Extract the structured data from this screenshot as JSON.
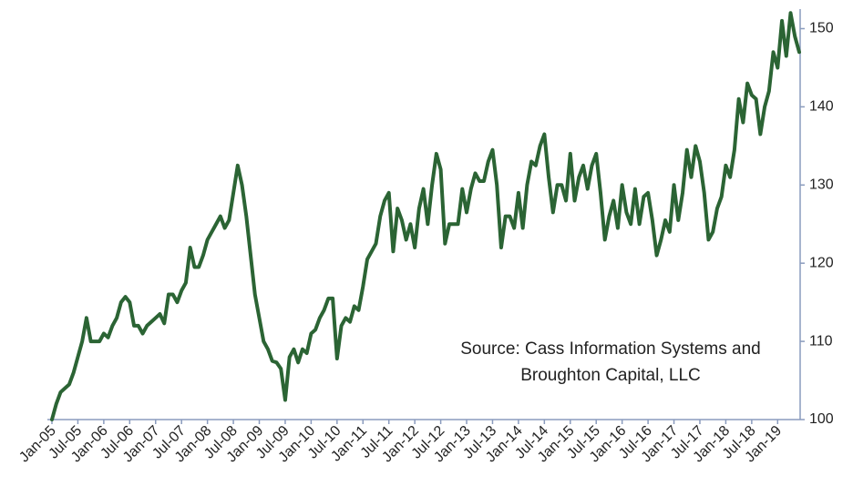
{
  "chart_data": {
    "type": "line",
    "annotation": [
      "Source: Cass Information Systems and",
      "Broughton Capital, LLC"
    ],
    "categories": [
      "Jan-05",
      null,
      null,
      null,
      null,
      null,
      "Jul-05",
      null,
      null,
      null,
      null,
      null,
      "Jan-06",
      null,
      null,
      null,
      null,
      null,
      "Jul-06",
      null,
      null,
      null,
      null,
      null,
      "Jan-07",
      null,
      null,
      null,
      null,
      null,
      "Jul-07",
      null,
      null,
      null,
      null,
      null,
      "Jan-08",
      null,
      null,
      null,
      null,
      null,
      "Jul-08",
      null,
      null,
      null,
      null,
      null,
      "Jan-09",
      null,
      null,
      null,
      null,
      null,
      "Jul-09",
      null,
      null,
      null,
      null,
      null,
      "Jan-10",
      null,
      null,
      null,
      null,
      null,
      "Jul-10",
      null,
      null,
      null,
      null,
      null,
      "Jan-11",
      null,
      null,
      null,
      null,
      null,
      "Jul-11",
      null,
      null,
      null,
      null,
      null,
      "Jan-12",
      null,
      null,
      null,
      null,
      null,
      "Jul-12",
      null,
      null,
      null,
      null,
      null,
      "Jan-13",
      null,
      null,
      null,
      null,
      null,
      "Jul-13",
      null,
      null,
      null,
      null,
      null,
      "Jan-14",
      null,
      null,
      null,
      null,
      null,
      "Jul-14",
      null,
      null,
      null,
      null,
      null,
      "Jan-15",
      null,
      null,
      null,
      null,
      null,
      "Jul-15",
      null,
      null,
      null,
      null,
      null,
      "Jan-16",
      null,
      null,
      null,
      null,
      null,
      "Jul-16",
      null,
      null,
      null,
      null,
      null,
      "Jan-17",
      null,
      null,
      null,
      null,
      null,
      "Jul-17",
      null,
      null,
      null,
      null,
      null,
      "Jan-18",
      null,
      null,
      null,
      null,
      null,
      "Jul-18",
      null,
      null,
      null,
      null,
      null,
      "Jan-19",
      null,
      null,
      null,
      null,
      null
    ],
    "values": [
      100,
      102,
      103.5,
      104,
      104.5,
      106,
      108,
      110,
      113,
      110,
      110,
      110,
      111,
      110.5,
      112,
      113,
      115,
      115.7,
      115,
      112,
      112,
      111,
      112,
      112.5,
      113,
      113.5,
      112.3,
      116,
      116,
      115,
      116.5,
      117.5,
      122,
      119.5,
      119.5,
      121,
      123,
      124,
      125,
      126,
      124.5,
      125.5,
      129,
      132.5,
      130,
      126,
      121,
      116,
      113,
      110,
      109,
      107.5,
      107.3,
      106.5,
      102.5,
      108,
      109,
      107.3,
      109,
      108.5,
      111,
      111.5,
      113,
      114,
      115.5,
      115.5,
      107.8,
      112,
      113,
      112.5,
      114.5,
      114,
      117,
      120.5,
      121.5,
      122.5,
      126,
      128,
      129,
      121.5,
      127,
      125.5,
      123,
      125,
      122,
      127,
      129.5,
      125,
      130,
      134,
      132,
      122.5,
      125,
      125,
      125,
      129.5,
      126.5,
      129.5,
      131.5,
      130.5,
      130.5,
      133,
      134.5,
      130,
      122,
      126,
      126,
      124.5,
      129,
      124.5,
      130,
      133,
      132.5,
      135,
      136.5,
      131,
      126.5,
      130,
      130,
      128,
      134,
      128,
      131,
      132.5,
      129.5,
      132.5,
      134,
      129,
      123,
      126,
      128,
      124.5,
      130,
      126.5,
      125,
      129.5,
      125,
      128.5,
      129,
      125.5,
      121,
      123,
      125.5,
      124,
      130,
      125.5,
      129,
      134.5,
      131,
      135,
      133,
      129,
      123,
      124,
      127,
      128.5,
      132.5,
      131,
      134.5,
      141,
      138,
      143,
      141.5,
      141,
      136.5,
      140,
      142,
      147,
      145,
      151,
      146.5,
      152,
      149,
      147
    ],
    "color": "#2b6434",
    "ylim": [
      100,
      152.5
    ],
    "yticks": [
      100,
      110,
      120,
      130,
      140,
      150
    ],
    "y_axis_side": "right"
  }
}
